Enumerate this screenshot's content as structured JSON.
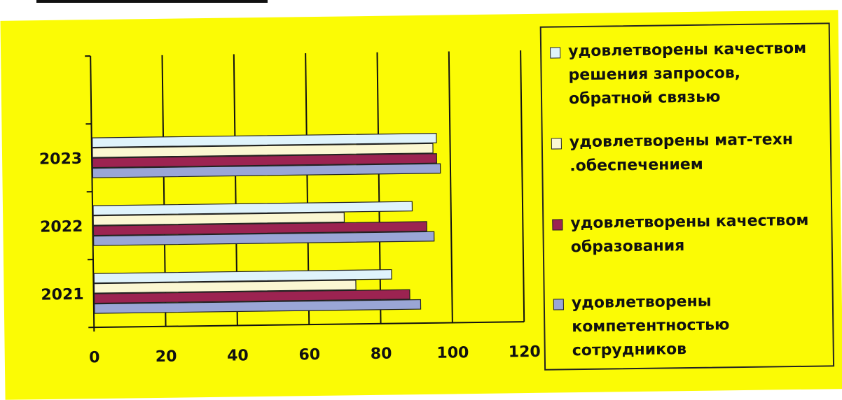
{
  "chart_data": {
    "type": "bar",
    "orientation": "horizontal",
    "categories": [
      "2021",
      "2022",
      "2023"
    ],
    "series": [
      {
        "name": "удовлетворены качеством решения запросов, обратной связью",
        "color": "#dff3fb",
        "values": [
          83,
          89,
          96
        ]
      },
      {
        "name": "удовлетворены мат-техн .обеспечением",
        "color": "#fbf7d2",
        "values": [
          73,
          70,
          95
        ]
      },
      {
        "name": "удовлетворены качеством образования",
        "color": "#9c2351",
        "values": [
          88,
          93,
          96
        ]
      },
      {
        "name": "удовлетворены компетентностью сотрудников",
        "color": "#9aa6d6",
        "values": [
          91,
          95,
          97
        ]
      }
    ],
    "xlim": [
      0,
      120
    ],
    "xticks": [
      "0",
      "20",
      "40",
      "60",
      "80",
      "100",
      "120"
    ],
    "grid": "vertical major",
    "legend_position": "right",
    "background_color": "#fbfb05"
  }
}
